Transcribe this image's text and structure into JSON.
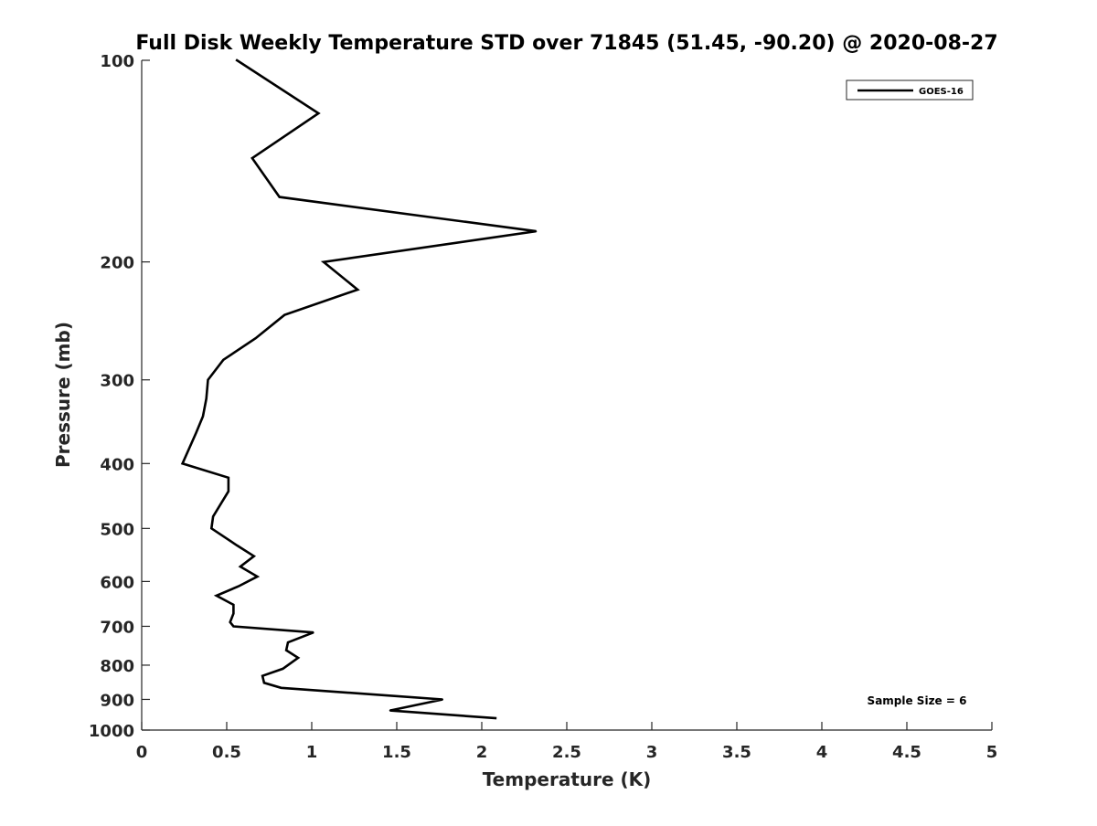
{
  "chart_data": {
    "type": "line",
    "title": "Full Disk Weekly Temperature STD over 71845 (51.45, -90.20) @ 2020-08-27",
    "xlabel": "Temperature (K)",
    "ylabel": "Pressure (mb)",
    "xlim": [
      0,
      5
    ],
    "ylim": [
      100,
      1000
    ],
    "y_scale": "log",
    "y_direction": "reversed",
    "x_ticks": [
      0,
      0.5,
      1,
      1.5,
      2,
      2.5,
      3,
      3.5,
      4,
      4.5,
      5
    ],
    "x_tick_labels": [
      "0",
      "0.5",
      "1",
      "1.5",
      "2",
      "2.5",
      "3",
      "3.5",
      "4",
      "4.5",
      "5"
    ],
    "y_ticks": [
      100,
      200,
      300,
      400,
      500,
      600,
      700,
      800,
      900,
      1000
    ],
    "y_tick_labels": [
      "100",
      "200",
      "300",
      "400",
      "500",
      "600",
      "700",
      "800",
      "900",
      "1000"
    ],
    "grid": false,
    "legend_position": "top-right",
    "annotation": "Sample Size = 6",
    "line_color": "#000000",
    "series": [
      {
        "name": "GOES-16",
        "points": [
          {
            "x": 0.56,
            "y": 100
          },
          {
            "x": 1.04,
            "y": 120
          },
          {
            "x": 0.65,
            "y": 140
          },
          {
            "x": 0.81,
            "y": 160
          },
          {
            "x": 2.32,
            "y": 180
          },
          {
            "x": 1.07,
            "y": 200
          },
          {
            "x": 1.27,
            "y": 220
          },
          {
            "x": 0.84,
            "y": 240
          },
          {
            "x": 0.67,
            "y": 260
          },
          {
            "x": 0.48,
            "y": 280
          },
          {
            "x": 0.39,
            "y": 300
          },
          {
            "x": 0.38,
            "y": 320
          },
          {
            "x": 0.36,
            "y": 340
          },
          {
            "x": 0.32,
            "y": 360
          },
          {
            "x": 0.24,
            "y": 400
          },
          {
            "x": 0.51,
            "y": 420
          },
          {
            "x": 0.51,
            "y": 440
          },
          {
            "x": 0.42,
            "y": 480
          },
          {
            "x": 0.41,
            "y": 500
          },
          {
            "x": 0.56,
            "y": 530
          },
          {
            "x": 0.66,
            "y": 550
          },
          {
            "x": 0.58,
            "y": 570
          },
          {
            "x": 0.68,
            "y": 590
          },
          {
            "x": 0.57,
            "y": 610
          },
          {
            "x": 0.44,
            "y": 630
          },
          {
            "x": 0.54,
            "y": 650
          },
          {
            "x": 0.54,
            "y": 670
          },
          {
            "x": 0.52,
            "y": 690
          },
          {
            "x": 0.54,
            "y": 700
          },
          {
            "x": 1.01,
            "y": 715
          },
          {
            "x": 0.86,
            "y": 740
          },
          {
            "x": 0.85,
            "y": 760
          },
          {
            "x": 0.92,
            "y": 780
          },
          {
            "x": 0.83,
            "y": 810
          },
          {
            "x": 0.71,
            "y": 830
          },
          {
            "x": 0.72,
            "y": 850
          },
          {
            "x": 0.82,
            "y": 865
          },
          {
            "x": 1.77,
            "y": 900
          },
          {
            "x": 1.46,
            "y": 935
          },
          {
            "x": 2.08,
            "y": 960
          }
        ]
      }
    ]
  }
}
